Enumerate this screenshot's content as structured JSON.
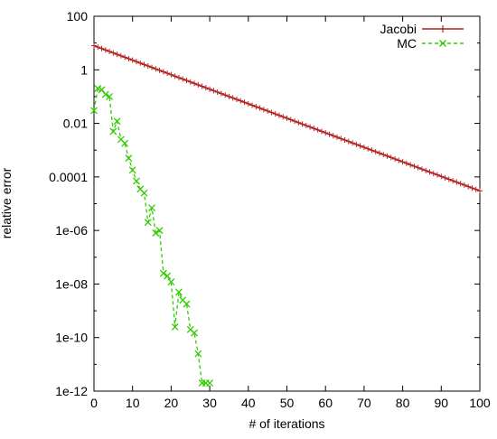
{
  "chart_data": {
    "type": "line",
    "xlabel": "# of iterations",
    "ylabel": "relative error",
    "xlim": [
      0,
      100
    ],
    "ylim": [
      1e-12,
      100
    ],
    "y_scale": "log",
    "grid": false,
    "legend_position": "top-right",
    "x_ticks": [
      {
        "value": 0,
        "label": "0"
      },
      {
        "value": 10,
        "label": "10"
      },
      {
        "value": 20,
        "label": "20"
      },
      {
        "value": 30,
        "label": "30"
      },
      {
        "value": 40,
        "label": "40"
      },
      {
        "value": 50,
        "label": "50"
      },
      {
        "value": 60,
        "label": "60"
      },
      {
        "value": 70,
        "label": "70"
      },
      {
        "value": 80,
        "label": "80"
      },
      {
        "value": 90,
        "label": "90"
      },
      {
        "value": 100,
        "label": "100"
      }
    ],
    "y_ticks": [
      {
        "value": 100,
        "label": "100"
      },
      {
        "value": 1,
        "label": "1"
      },
      {
        "value": 0.01,
        "label": "0.01"
      },
      {
        "value": 0.0001,
        "label": "0.0001"
      },
      {
        "value": 1e-06,
        "label": "1e-06"
      },
      {
        "value": 1e-08,
        "label": "1e-08"
      },
      {
        "value": 1e-10,
        "label": "1e-10"
      },
      {
        "value": 1e-12,
        "label": "1e-12"
      }
    ],
    "series": [
      {
        "name": "Jacobi",
        "color": "#b22222",
        "marker": "plus",
        "line_style": "solid",
        "x": [
          0,
          100
        ],
        "y": [
          8.0,
          3e-05
        ]
      },
      {
        "name": "MC",
        "color": "#33cc00",
        "marker": "cross",
        "line_style": "dashed",
        "x": [
          0,
          1,
          2,
          3,
          4,
          5,
          6,
          7,
          8,
          9,
          10,
          11,
          12,
          13,
          14,
          15,
          16,
          17,
          18,
          19,
          20,
          21,
          22,
          23,
          24,
          25,
          26,
          27,
          28,
          29,
          30
        ],
        "y": [
          0.03,
          0.2,
          0.18,
          0.12,
          0.1,
          0.005,
          0.012,
          0.0025,
          0.0018,
          0.0005,
          0.00018,
          7e-05,
          3.5e-05,
          2.5e-05,
          2e-06,
          7e-06,
          8e-07,
          1e-06,
          2.5e-08,
          2e-08,
          1.2e-08,
          2.5e-10,
          5e-09,
          2.5e-09,
          1.8e-09,
          2e-10,
          1.5e-10,
          2.5e-11,
          2e-12,
          2e-12,
          2e-12
        ]
      }
    ]
  }
}
